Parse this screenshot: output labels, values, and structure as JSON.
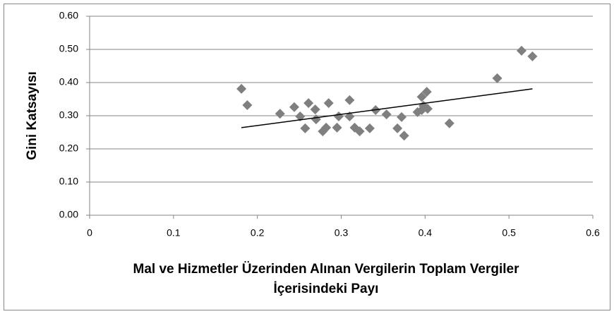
{
  "chart_data": {
    "type": "scatter",
    "xlabel": "Mal ve Hizmetler Üzerinden Alınan Vergilerin Toplam Vergiler İçerisindeki Payı",
    "ylabel": "Gini Katsayısı",
    "series": [
      {
        "color": "#7f7f7f",
        "x": [
          0.181,
          0.188,
          0.227,
          0.244,
          0.251,
          0.257,
          0.261,
          0.269,
          0.27,
          0.278,
          0.282,
          0.285,
          0.295,
          0.297,
          0.31,
          0.31,
          0.316,
          0.322,
          0.334,
          0.341,
          0.354,
          0.367,
          0.372,
          0.375,
          0.391,
          0.396,
          0.396,
          0.398,
          0.402,
          0.403,
          0.429,
          0.486,
          0.515,
          0.528
        ],
        "values": [
          0.381,
          0.332,
          0.306,
          0.326,
          0.298,
          0.262,
          0.338,
          0.319,
          0.289,
          0.253,
          0.264,
          0.338,
          0.264,
          0.298,
          0.347,
          0.298,
          0.264,
          0.253,
          0.262,
          0.317,
          0.304,
          0.262,
          0.296,
          0.24,
          0.311,
          0.317,
          0.357,
          0.33,
          0.372,
          0.321,
          0.277,
          0.413,
          0.496,
          0.479
        ]
      }
    ],
    "trendline": {
      "x": [
        0.181,
        0.528
      ],
      "y": [
        0.264,
        0.381
      ],
      "color": "#000000"
    },
    "xlim": [
      0,
      0.6
    ],
    "xticks": [
      0,
      0.1,
      0.2,
      0.3,
      0.4,
      0.5,
      0.6
    ],
    "ylim": [
      0,
      0.6
    ],
    "yticks": [
      {
        "value": 0,
        "label": "0.00"
      },
      {
        "value": 0.1,
        "label": "0.10"
      },
      {
        "value": 0.2,
        "label": "0.20"
      },
      {
        "value": 0.3,
        "label": "0.30"
      },
      {
        "value": 0.4,
        "label": "0.40"
      },
      {
        "value": 0.5,
        "label": "0.50"
      },
      {
        "value": 0.6,
        "label": "0.60"
      }
    ],
    "grid": true
  }
}
